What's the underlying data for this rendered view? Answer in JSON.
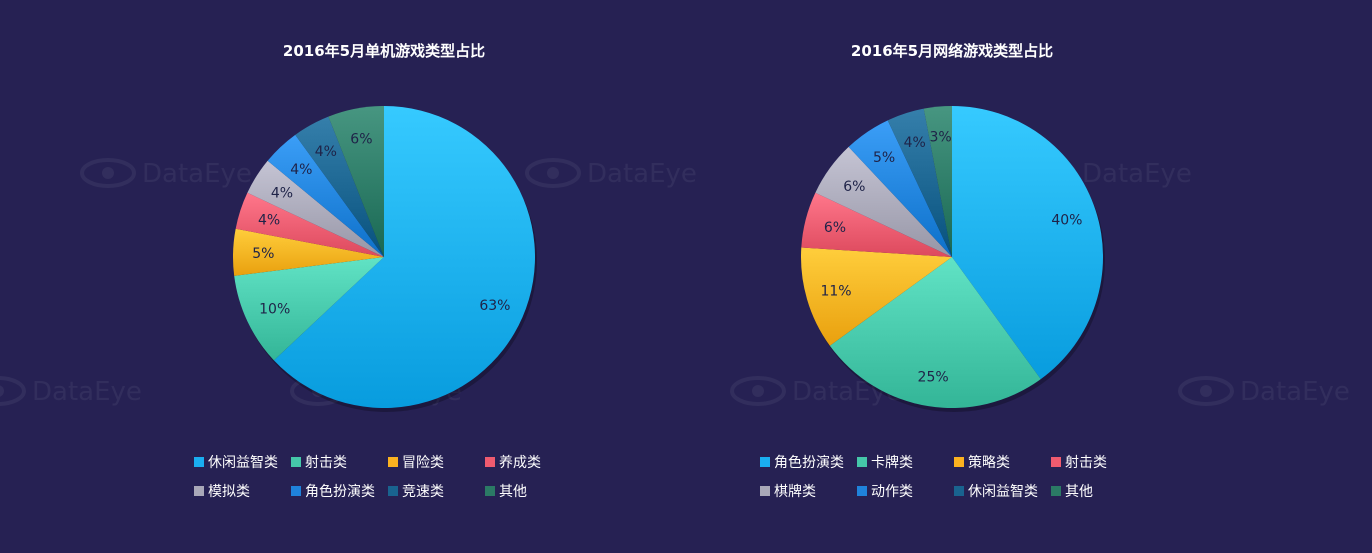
{
  "watermark": "DataEye",
  "colors": {
    "background": "#262153",
    "label_text": "#1f2348"
  },
  "chart_data": [
    {
      "type": "pie",
      "title": "2016年5月单机游戏类型占比",
      "slices": [
        {
          "label": "休闲益智类",
          "value": 63,
          "display": "63%",
          "color": "#1aaef0"
        },
        {
          "label": "射击类",
          "value": 10,
          "display": "10%",
          "color": "#45c7a9"
        },
        {
          "label": "冒险类",
          "value": 5,
          "display": "5%",
          "color": "#fbb220"
        },
        {
          "label": "养成类",
          "value": 4,
          "display": "4%",
          "color": "#ef5b6f"
        },
        {
          "label": "模拟类",
          "value": 4,
          "display": "4%",
          "color": "#a9a8b8"
        },
        {
          "label": "角色扮演类",
          "value": 4,
          "display": "4%",
          "color": "#1f82db"
        },
        {
          "label": "竞速类",
          "value": 4,
          "display": "4%",
          "color": "#19638f"
        },
        {
          "label": "其他",
          "value": 6,
          "display": "6%",
          "color": "#2b7a65"
        }
      ],
      "legend_position": "bottom"
    },
    {
      "type": "pie",
      "title": "2016年5月网络游戏类型占比",
      "slices": [
        {
          "label": "角色扮演类",
          "value": 40,
          "display": "40%",
          "color": "#1aaef0"
        },
        {
          "label": "卡牌类",
          "value": 25,
          "display": "25%",
          "color": "#45c7a9"
        },
        {
          "label": "策略类",
          "value": 11,
          "display": "11%",
          "color": "#fbb220"
        },
        {
          "label": "射击类",
          "value": 6,
          "display": "6%",
          "color": "#ef5b6f"
        },
        {
          "label": "棋牌类",
          "value": 6,
          "display": "6%",
          "color": "#a9a8b8"
        },
        {
          "label": "动作类",
          "value": 5,
          "display": "5%",
          "color": "#1f82db"
        },
        {
          "label": "休闲益智类",
          "value": 4,
          "display": "4%",
          "color": "#19638f"
        },
        {
          "label": "其他",
          "value": 3,
          "display": "3%",
          "color": "#2b7a65"
        }
      ],
      "legend_position": "bottom"
    }
  ]
}
